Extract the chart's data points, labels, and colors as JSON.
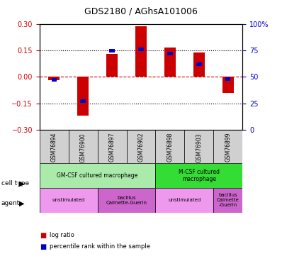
{
  "title": "GDS2180 / AGhsA101006",
  "samples": [
    "GSM76894",
    "GSM76900",
    "GSM76897",
    "GSM76902",
    "GSM76898",
    "GSM76903",
    "GSM76899"
  ],
  "log_ratios": [
    -0.02,
    -0.22,
    0.13,
    0.285,
    0.165,
    0.14,
    -0.09
  ],
  "percentile_ranks": [
    47,
    27,
    75,
    76,
    72,
    62,
    48
  ],
  "ylim_left": [
    -0.3,
    0.3
  ],
  "ylim_right": [
    0,
    100
  ],
  "yticks_left": [
    -0.3,
    -0.15,
    0,
    0.15,
    0.3
  ],
  "yticks_right": [
    0,
    25,
    50,
    75,
    100
  ],
  "bar_color": "#cc0000",
  "percentile_color": "#0000cc",
  "dotted_line_color": "#000000",
  "zero_line_color": "#cc0000",
  "cell_type_row": {
    "groups": [
      {
        "label": "GM-CSF cultured macrophage",
        "start": 0,
        "end": 4,
        "color": "#aaeaaa"
      },
      {
        "label": "M-CSF cultured\nmacrophage",
        "start": 4,
        "end": 7,
        "color": "#33dd33"
      }
    ]
  },
  "agent_row": {
    "groups": [
      {
        "label": "unstimulated",
        "start": 0,
        "end": 2,
        "color": "#ee99ee"
      },
      {
        "label": "bacillus\nCalmette-Guerin",
        "start": 2,
        "end": 4,
        "color": "#cc66cc"
      },
      {
        "label": "unstimulated",
        "start": 4,
        "end": 6,
        "color": "#ee99ee"
      },
      {
        "label": "bacillus\nCalmette\n-Guerin",
        "start": 6,
        "end": 7,
        "color": "#cc66cc"
      }
    ]
  },
  "legend_items": [
    {
      "label": "log ratio",
      "color": "#cc0000"
    },
    {
      "label": "percentile rank within the sample",
      "color": "#0000cc"
    }
  ],
  "background_color": "#ffffff",
  "plot_bg_color": "#ffffff",
  "tick_label_color_left": "#cc0000",
  "tick_label_color_right": "#0000cc"
}
